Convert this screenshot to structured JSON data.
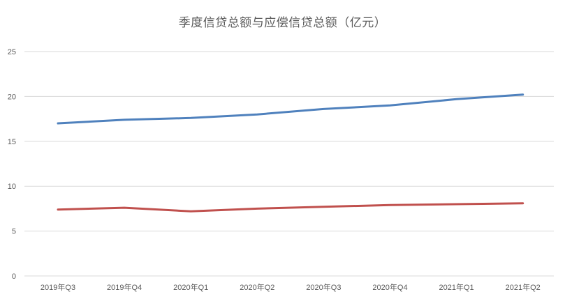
{
  "chart_data": {
    "type": "line",
    "title": "季度信贷总额与应偿信贷总额（亿元）",
    "categories": [
      "2019年Q3",
      "2019年Q4",
      "2020年Q1",
      "2020年Q2",
      "2020年Q3",
      "2020年Q4",
      "2021年Q1",
      "2021年Q2"
    ],
    "series": [
      {
        "color": "#4f81bd",
        "values": [
          17.0,
          17.4,
          17.6,
          18.0,
          18.6,
          19.0,
          19.7,
          20.2
        ]
      },
      {
        "color": "#c0504d",
        "values": [
          7.4,
          7.6,
          7.2,
          7.5,
          7.7,
          7.9,
          8.0,
          8.1
        ]
      }
    ],
    "yticks": [
      0,
      5,
      10,
      15,
      20,
      25
    ],
    "ylim": [
      0,
      25
    ],
    "grid": true,
    "legend": "none",
    "gridline_color": "#d9d9d9"
  }
}
